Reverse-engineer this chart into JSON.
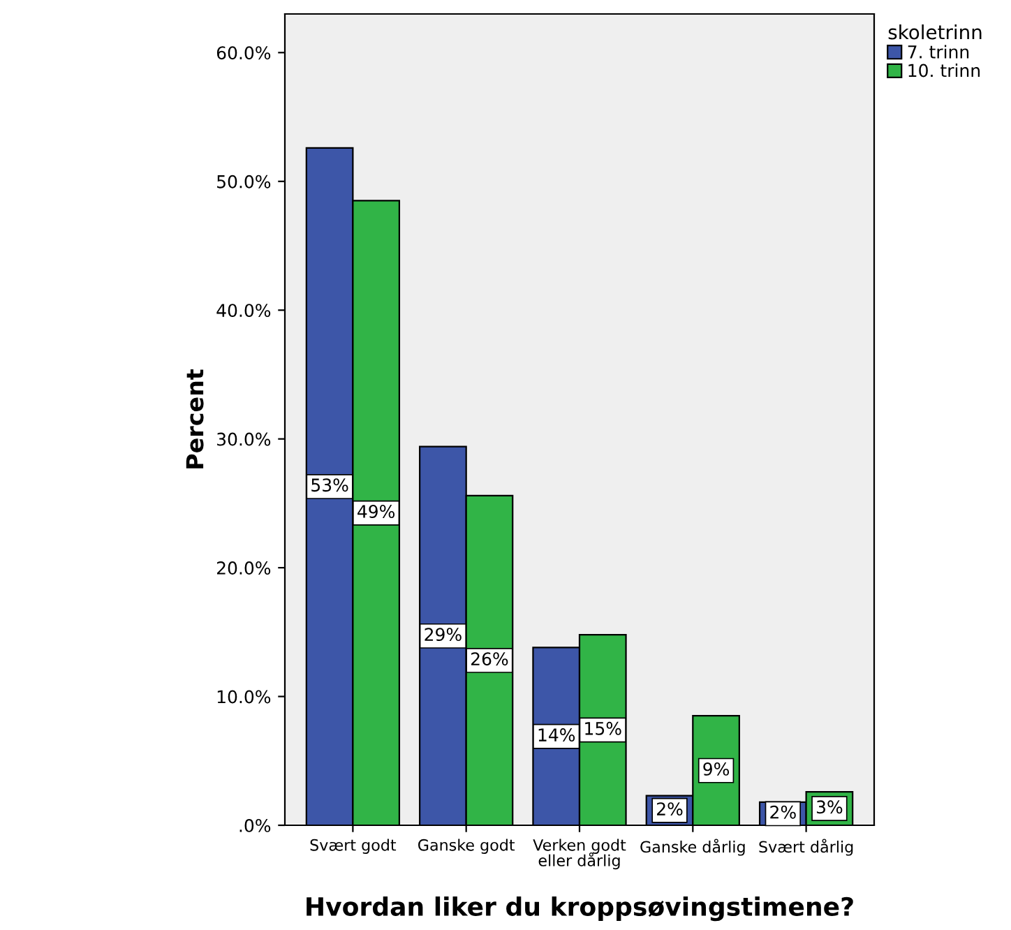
{
  "chart_data": {
    "type": "bar",
    "xlabel": "Hvordan liker du kroppsøvingstimene?",
    "ylabel": "Percent",
    "legend_title": "skoletrinn",
    "categories": [
      "Svært godt",
      "Ganske godt",
      "Verken godt\neller dårlig",
      "Ganske dårlig",
      "Svært dårlig"
    ],
    "series": [
      {
        "name": "7. trinn",
        "color": "#3d56a8",
        "values": [
          52.6,
          29.4,
          13.8,
          2.3,
          1.8
        ],
        "value_labels": [
          "53%",
          "29%",
          "14%",
          "2%",
          "2%"
        ]
      },
      {
        "name": "10. trinn",
        "color": "#31b447",
        "values": [
          48.5,
          25.6,
          14.8,
          8.5,
          2.6
        ],
        "value_labels": [
          "49%",
          "26%",
          "15%",
          "9%",
          "3%"
        ]
      }
    ],
    "ylim": [
      0,
      63
    ],
    "yticks": [
      {
        "value": 0,
        "label": ".0%"
      },
      {
        "value": 10,
        "label": "10.0%"
      },
      {
        "value": 20,
        "label": "20.0%"
      },
      {
        "value": 30,
        "label": "30.0%"
      },
      {
        "value": 40,
        "label": "40.0%"
      },
      {
        "value": 50,
        "label": "50.0%"
      },
      {
        "value": 60,
        "label": "60.0%"
      }
    ],
    "grid": false,
    "legend": "top right"
  }
}
